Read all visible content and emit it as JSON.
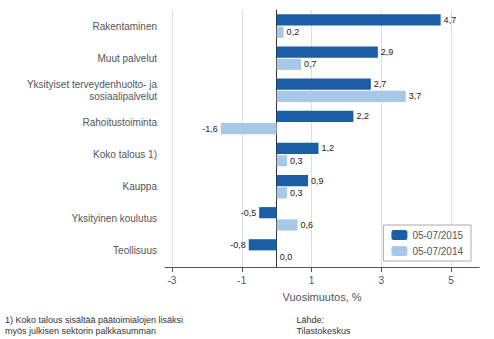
{
  "chart_data": {
    "type": "bar",
    "orientation": "horizontal",
    "categories": [
      "Teollisuus",
      "Yksityinen koulutus",
      "Kauppa",
      "Koko talous 1)",
      "Rahoitustoiminta",
      "Yksityiset terveydenhuolto- ja\nsosiaalipalvelut",
      "Muut palvelut",
      "Rakentaminen"
    ],
    "series": [
      {
        "name": "05-07/2015",
        "color": "#1B5EA6",
        "values": [
          -0.8,
          -0.5,
          0.9,
          1.2,
          2.2,
          2.7,
          2.9,
          4.7
        ],
        "value_labels": [
          "-0,8",
          "-0,5",
          "0,9",
          "1,2",
          "2,2",
          "2,7",
          "2,9",
          "4,7"
        ]
      },
      {
        "name": "05-07/2014",
        "color": "#A8C8E8",
        "values": [
          0.0,
          0.6,
          0.3,
          0.3,
          -1.6,
          3.7,
          0.7,
          0.2
        ],
        "value_labels": [
          "0,0",
          "0,6",
          "0,3",
          "0,3",
          "-1,6",
          "3,7",
          "0,7",
          "0,2"
        ]
      }
    ],
    "xlabel": "Vuosimuutos, %",
    "xlim": [
      -3.2,
      5.8
    ],
    "xticks": [
      -3,
      -1,
      1,
      3,
      5
    ],
    "grid": true,
    "legend": "lower right",
    "data_labels": true,
    "annotations": [
      "1) Koko talous sisältää päätoimialojen lisäksi\nmyös julkisen sektorin palkkasumman",
      "Lähde:\nTilastokeskus"
    ]
  }
}
